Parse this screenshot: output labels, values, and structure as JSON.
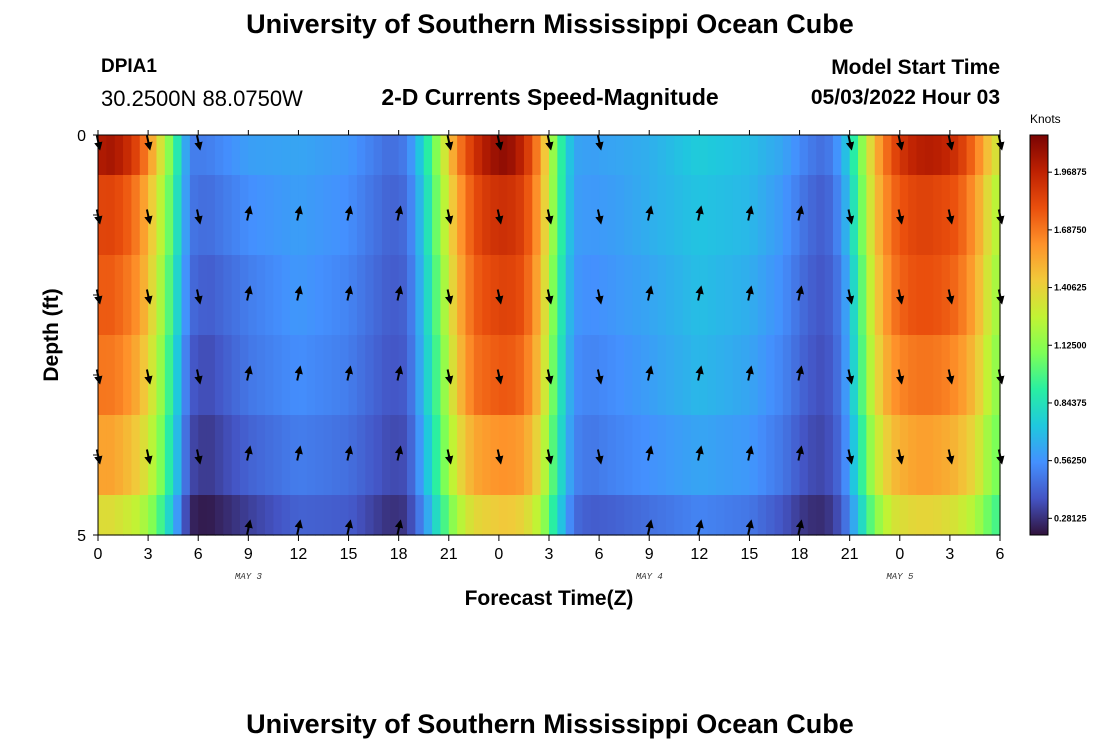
{
  "header": {
    "title": "University of Southern Mississippi Ocean Cube",
    "station_id": "DPIA1",
    "coordinates": "30.2500N  88.0750W",
    "subtitle": "2-D Currents Speed-Magnitude",
    "model_start_label": "Model Start Time",
    "model_start_value": "05/03/2022 Hour 03"
  },
  "footer": {
    "title": "University of Southern Mississippi Ocean Cube"
  },
  "colors": {
    "colormap": [
      "#30123b",
      "#4454c4",
      "#4490fe",
      "#1fc8de",
      "#29efa2",
      "#7dff56",
      "#c1f334",
      "#f1ca3a",
      "#fe922a",
      "#ea4f0d",
      "#be2102",
      "#7a0403"
    ],
    "arrow": "#000000",
    "frame": "#000000"
  },
  "chart_data": {
    "type": "heatmap",
    "title": "2-D Currents Speed-Magnitude",
    "xlabel": "Forecast Time(Z)",
    "ylabel": "Depth (ft)",
    "x_tick_labels": [
      "0",
      "3",
      "6",
      "9",
      "12",
      "15",
      "18",
      "21",
      "0",
      "3",
      "6",
      "9",
      "12",
      "15",
      "18",
      "21",
      "0",
      "3",
      "6"
    ],
    "x_day_labels": [
      {
        "label": "MAY 3",
        "tick_index": 4
      },
      {
        "label": "MAY 4",
        "tick_index": 12
      },
      {
        "label": "MAY 5",
        "tick_index": 17
      }
    ],
    "y_tick_labels": [
      "0",
      "5"
    ],
    "y_range": [
      0,
      5
    ],
    "x_range_hours": [
      0,
      54
    ],
    "colorbar": {
      "title": "Knots",
      "tick_labels": [
        "1.96875",
        "1.68750",
        "1.40625",
        "1.12500",
        "0.84375",
        "0.56250",
        "0.28125"
      ],
      "tick_values": [
        1.96875,
        1.6875,
        1.40625,
        1.125,
        0.84375,
        0.5625,
        0.28125
      ],
      "range": [
        0.2,
        2.15
      ]
    },
    "depth_layers": [
      0.5,
      1.5,
      2.5,
      3.5,
      4.5
    ],
    "arrow_hours": [
      0,
      3,
      6,
      9,
      12,
      15,
      18,
      21,
      24,
      27,
      30,
      33,
      36,
      39,
      42,
      45,
      48,
      51,
      54
    ],
    "arrow_depths": [
      0,
      1,
      2,
      3,
      4,
      5
    ],
    "arrow_direction_pattern": [
      "down",
      "down",
      "down",
      "up",
      "up",
      "up",
      "up",
      "down",
      "down",
      "down",
      "down",
      "up",
      "up",
      "up",
      "up",
      "down",
      "down",
      "down",
      "down"
    ],
    "speed_by_hour": {
      "hours": [
        0,
        0.5,
        1.5,
        2.5,
        3.5,
        4.5,
        5.5,
        6.5,
        9,
        12,
        15,
        17.5,
        18.5,
        19.5,
        20.5,
        21.5,
        22.5,
        23.5,
        24.5,
        25.5,
        26.5,
        27.5,
        28.5,
        29.5,
        31,
        33,
        36,
        39,
        41,
        42.5,
        43.5,
        44.5,
        45.5,
        46.5,
        47.5,
        48.5,
        49.5,
        50.5,
        51.5,
        52.5,
        53.5,
        54
      ],
      "layers": [
        [
          1.98,
          2.05,
          1.98,
          1.8,
          1.45,
          1.0,
          0.5,
          0.5,
          0.6,
          0.62,
          0.58,
          0.45,
          0.5,
          0.8,
          1.2,
          1.65,
          1.9,
          2.05,
          2.1,
          1.95,
          1.6,
          1.0,
          0.62,
          0.6,
          0.62,
          0.65,
          0.75,
          0.7,
          0.62,
          0.5,
          0.45,
          0.6,
          1.0,
          1.5,
          1.8,
          1.95,
          2.0,
          1.98,
          1.9,
          1.7,
          1.4,
          1.3
        ],
        [
          1.82,
          1.85,
          1.8,
          1.65,
          1.35,
          0.95,
          0.48,
          0.45,
          0.55,
          0.6,
          0.55,
          0.42,
          0.45,
          0.75,
          1.15,
          1.55,
          1.8,
          1.9,
          1.92,
          1.85,
          1.55,
          1.0,
          0.6,
          0.58,
          0.6,
          0.65,
          0.72,
          0.68,
          0.58,
          0.45,
          0.4,
          0.55,
          0.95,
          1.45,
          1.72,
          1.82,
          1.85,
          1.82,
          1.78,
          1.6,
          1.3,
          1.2
        ],
        [
          1.75,
          1.78,
          1.72,
          1.6,
          1.3,
          0.9,
          0.45,
          0.4,
          0.5,
          0.58,
          0.52,
          0.4,
          0.42,
          0.72,
          1.1,
          1.5,
          1.75,
          1.82,
          1.85,
          1.8,
          1.5,
          0.95,
          0.58,
          0.55,
          0.58,
          0.62,
          0.7,
          0.65,
          0.55,
          0.42,
          0.38,
          0.5,
          0.9,
          1.4,
          1.68,
          1.78,
          1.8,
          1.78,
          1.72,
          1.55,
          1.25,
          1.15
        ],
        [
          1.68,
          1.7,
          1.65,
          1.52,
          1.25,
          0.85,
          0.4,
          0.35,
          0.48,
          0.55,
          0.5,
          0.38,
          0.4,
          0.7,
          1.05,
          1.45,
          1.7,
          1.75,
          1.78,
          1.72,
          1.45,
          0.92,
          0.55,
          0.52,
          0.55,
          0.6,
          0.68,
          0.62,
          0.52,
          0.4,
          0.36,
          0.48,
          0.88,
          1.35,
          1.6,
          1.68,
          1.7,
          1.68,
          1.62,
          1.48,
          1.2,
          1.1
        ],
        [
          1.55,
          1.58,
          1.52,
          1.42,
          1.18,
          0.8,
          0.35,
          0.3,
          0.42,
          0.5,
          0.46,
          0.35,
          0.36,
          0.65,
          1.0,
          1.35,
          1.55,
          1.6,
          1.62,
          1.58,
          1.35,
          0.88,
          0.52,
          0.48,
          0.52,
          0.56,
          0.62,
          0.58,
          0.48,
          0.36,
          0.34,
          0.45,
          0.82,
          1.25,
          1.48,
          1.55,
          1.58,
          1.55,
          1.5,
          1.38,
          1.12,
          1.05
        ],
        [
          1.35,
          1.38,
          1.32,
          1.25,
          1.05,
          0.7,
          0.25,
          0.22,
          0.32,
          0.42,
          0.4,
          0.28,
          0.3,
          0.55,
          0.9,
          1.2,
          1.38,
          1.42,
          1.45,
          1.4,
          1.22,
          0.8,
          0.45,
          0.4,
          0.42,
          0.46,
          0.52,
          0.48,
          0.38,
          0.28,
          0.27,
          0.38,
          0.72,
          1.1,
          1.32,
          1.38,
          1.4,
          1.38,
          1.32,
          1.22,
          1.0,
          0.95
        ]
      ]
    }
  }
}
